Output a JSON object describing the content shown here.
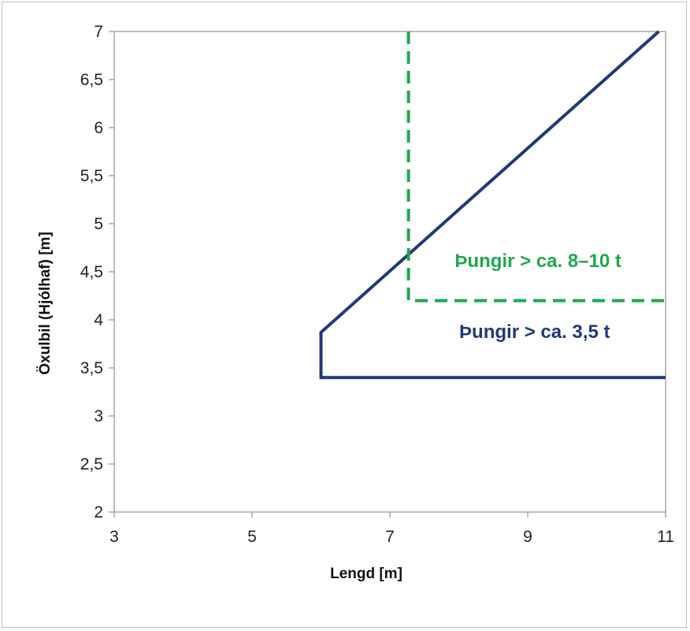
{
  "chart_data": {
    "type": "line",
    "title": "",
    "xlabel": "Lengd  [m]",
    "ylabel": "Öxulbil (Hjólhaf)  [m]",
    "xlim": [
      3,
      11
    ],
    "ylim": [
      2,
      7
    ],
    "x_ticks": [
      "3",
      "5",
      "7",
      "9",
      "11"
    ],
    "y_ticks": [
      "2",
      "2,5",
      "3",
      "3,5",
      "4",
      "4,5",
      "5",
      "5,5",
      "6",
      "6,5",
      "7"
    ],
    "grid": false,
    "series": [
      {
        "name": "",
        "color": "#1f3a7a",
        "style": "solid",
        "points": [
          [
            11,
            3.4
          ],
          [
            6,
            3.4
          ],
          [
            6,
            3.87
          ],
          [
            10.9,
            7.0
          ]
        ]
      },
      {
        "name": "",
        "color": "#20a84c",
        "style": "dashed",
        "points": [
          [
            7.27,
            7.0
          ],
          [
            7.27,
            4.2
          ],
          [
            11,
            4.2
          ]
        ]
      }
    ],
    "annotations": [
      {
        "text": "Þungir > ca. 3,5 t",
        "x": 9.1,
        "y": 3.81,
        "color": "#1f3a7a"
      },
      {
        "text": "Þungir > ca. 8–10 t",
        "x": 9.15,
        "y": 4.55,
        "color": "#20a84c"
      }
    ]
  }
}
